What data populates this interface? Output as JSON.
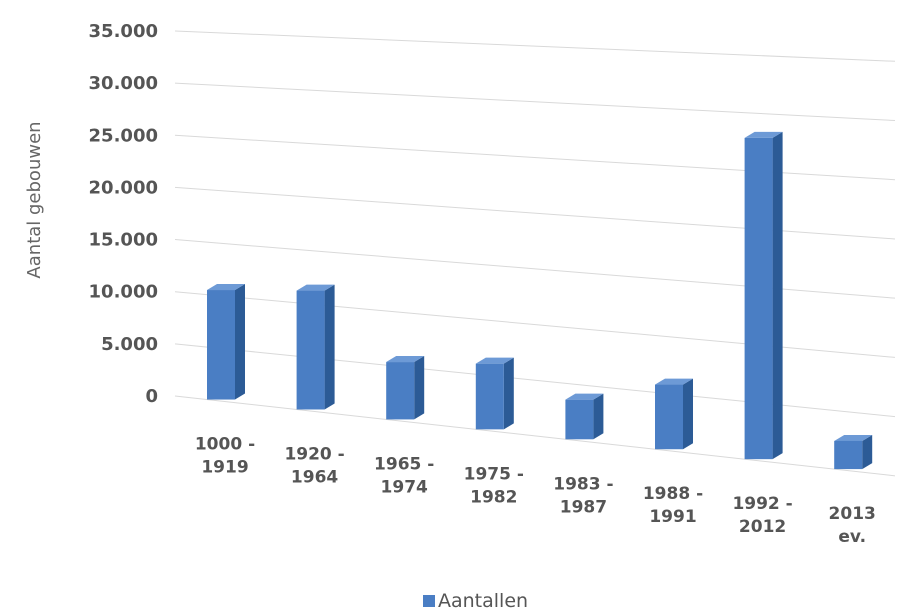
{
  "chart_data": {
    "type": "bar",
    "title": "",
    "xlabel": "",
    "ylabel": "Aantal gebouwen",
    "ylim": [
      0,
      35000
    ],
    "yticks": [
      0,
      5000,
      10000,
      15000,
      20000,
      25000,
      30000,
      35000
    ],
    "ytick_labels": [
      "0",
      "5.000",
      "10.000",
      "15.000",
      "20.000",
      "25.000",
      "30.000",
      "35.000"
    ],
    "categories": [
      [
        "1000 -",
        "1919"
      ],
      [
        "1920 -",
        "1964"
      ],
      [
        "1965 -",
        "1974"
      ],
      [
        "1975 -",
        "1982"
      ],
      [
        "1983 -",
        "1987"
      ],
      [
        "1988 -",
        "1991"
      ],
      [
        "1992 -",
        "2012"
      ],
      [
        "2013",
        "ev."
      ]
    ],
    "series": [
      {
        "name": "Aantallen",
        "values": [
          10500,
          11400,
          5500,
          6300,
          3800,
          6200,
          30800,
          2700
        ]
      }
    ],
    "grid": true,
    "legend_position": "bottom",
    "colors": {
      "bar_front": "#4a7ec4",
      "bar_side": "#2c5b96",
      "bar_top": "#6d9ad6",
      "grid": "#d9d9d9"
    }
  }
}
